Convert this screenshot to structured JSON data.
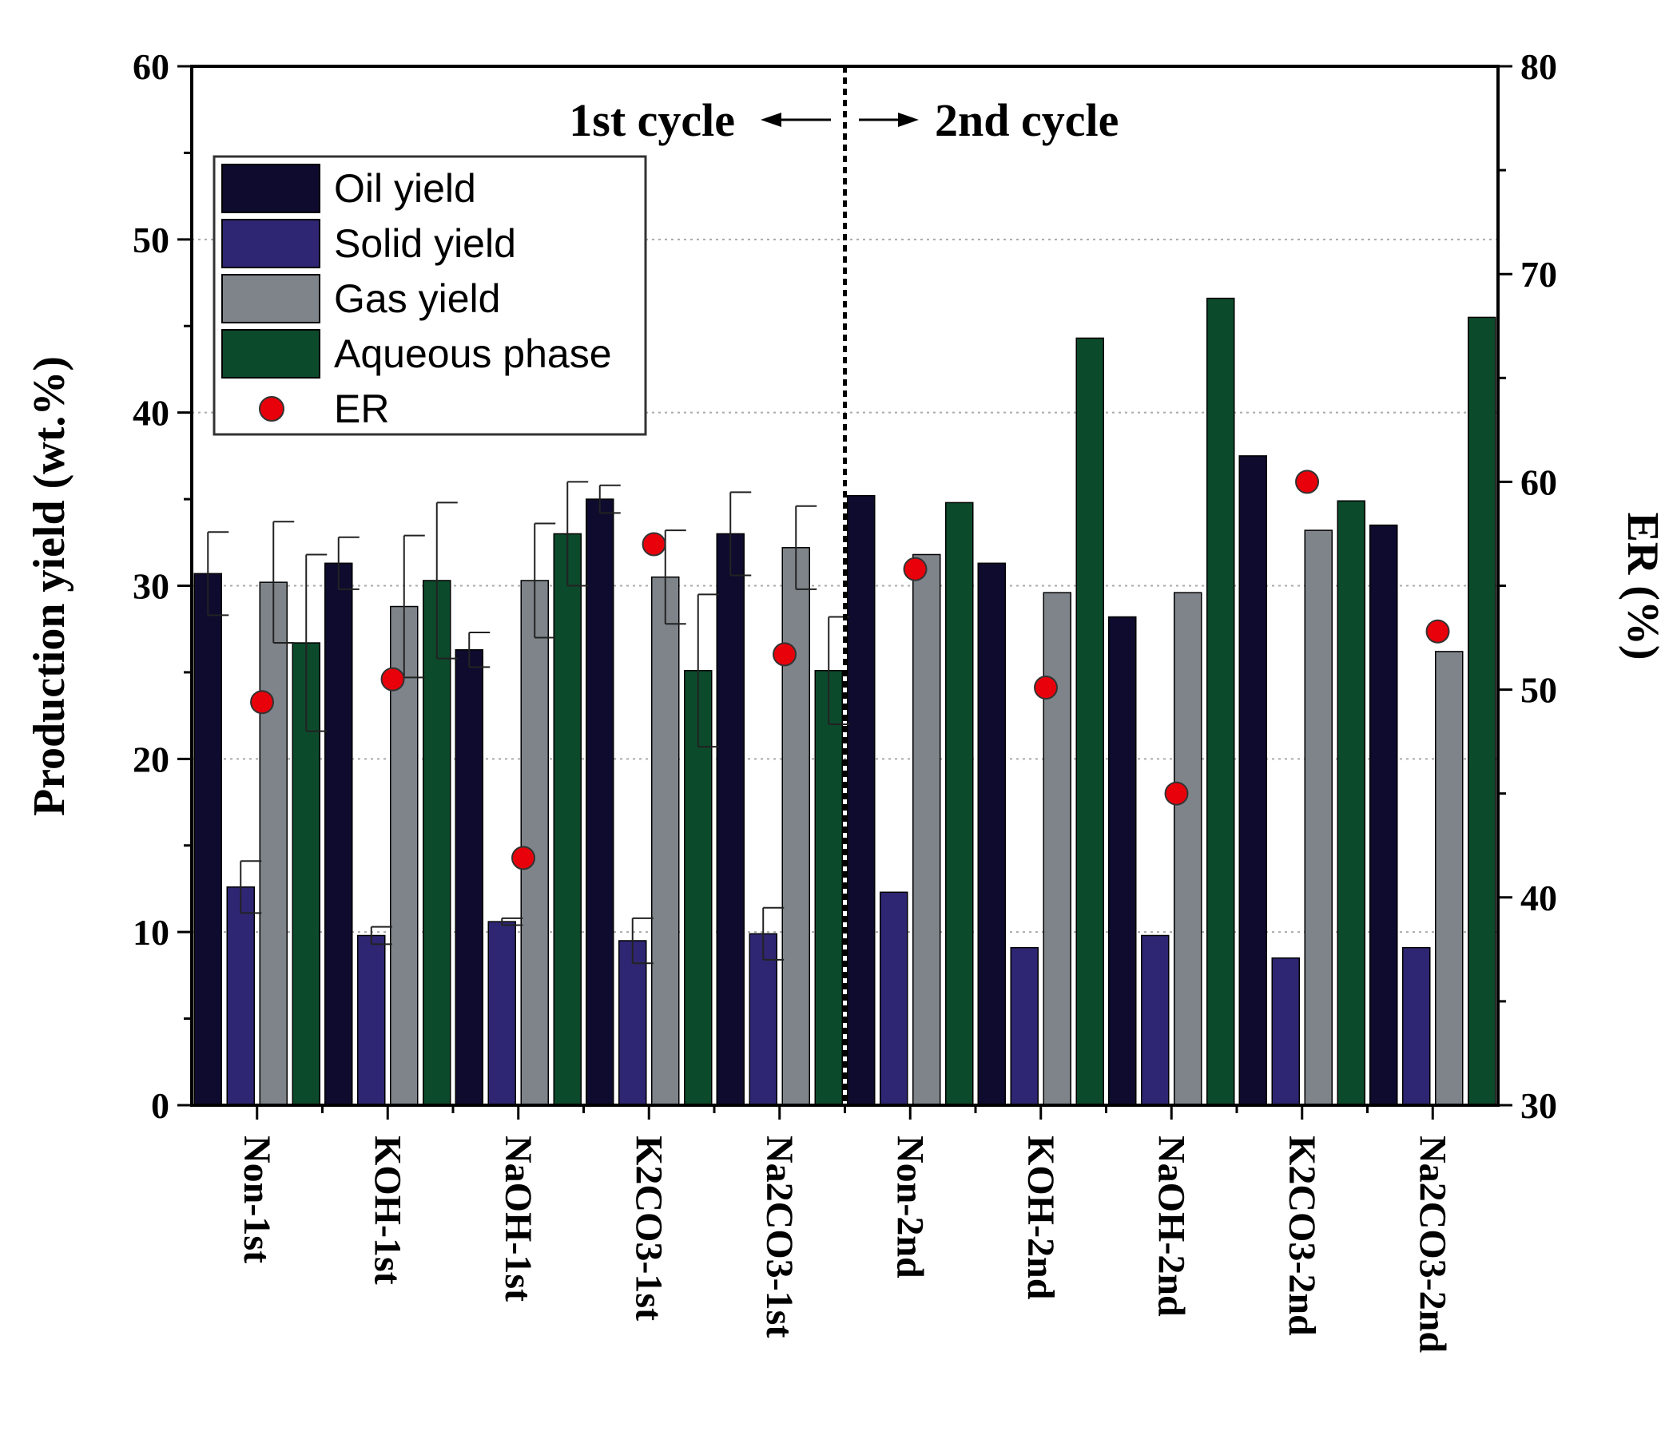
{
  "chart_data": {
    "type": "bar",
    "categories": [
      "Non-1st",
      "KOH-1st",
      "NaOH-1st",
      "K2CO3-1st",
      "Na2CO3-1st",
      "Non-2nd",
      "KOH-2nd",
      "NaOH-2nd",
      "K2CO3-2nd",
      "Na2CO3-2nd"
    ],
    "series": [
      {
        "name": "Oil yield",
        "color": "#0e0b2e",
        "axis": "left",
        "values": [
          30.7,
          31.3,
          26.3,
          35.0,
          33.0,
          35.2,
          31.3,
          28.2,
          37.5,
          33.5
        ],
        "errors": [
          2.4,
          1.5,
          1.0,
          0.8,
          2.4,
          null,
          null,
          null,
          null,
          null
        ]
      },
      {
        "name": "Solid yield",
        "color": "#2e2672",
        "axis": "left",
        "values": [
          12.6,
          9.8,
          10.6,
          9.5,
          9.9,
          12.3,
          9.1,
          9.8,
          8.5,
          9.1
        ],
        "errors": [
          1.5,
          0.5,
          0.2,
          1.3,
          1.5,
          null,
          null,
          null,
          null,
          null
        ]
      },
      {
        "name": "Gas yield",
        "color": "#7e848a",
        "axis": "left",
        "values": [
          30.2,
          28.8,
          30.3,
          30.5,
          32.2,
          31.8,
          29.6,
          29.6,
          33.2,
          26.2
        ],
        "errors": [
          3.5,
          4.1,
          3.3,
          2.7,
          2.4,
          null,
          null,
          null,
          null,
          null
        ]
      },
      {
        "name": "Aqueous phase",
        "color": "#0c4a2c",
        "axis": "left",
        "values": [
          26.7,
          30.3,
          33.0,
          25.1,
          25.1,
          34.8,
          44.3,
          46.6,
          34.9,
          45.5
        ],
        "errors": [
          5.1,
          4.5,
          3.0,
          4.4,
          3.1,
          null,
          null,
          null,
          null,
          null
        ]
      },
      {
        "name": "ER",
        "color": "#e8000b",
        "axis": "right",
        "marker": "circle",
        "values": [
          49.4,
          50.5,
          41.9,
          57.0,
          51.7,
          55.8,
          50.1,
          45.0,
          60.0,
          52.8
        ]
      }
    ],
    "ylabel": "Production yield (wt.%)",
    "y2label": "ER (%)",
    "ylim": [
      0,
      60
    ],
    "y2lim": [
      30,
      80
    ],
    "yticks": [
      "0",
      "10",
      "20",
      "30",
      "40",
      "50",
      "60"
    ],
    "y2ticks": [
      "30",
      "40",
      "50",
      "60",
      "70",
      "80"
    ],
    "grid": "horizontal dotted",
    "legend_position": "top-left",
    "annotations": {
      "left": "1st cycle",
      "right": "2nd cycle"
    },
    "divider_after_category": 5
  }
}
